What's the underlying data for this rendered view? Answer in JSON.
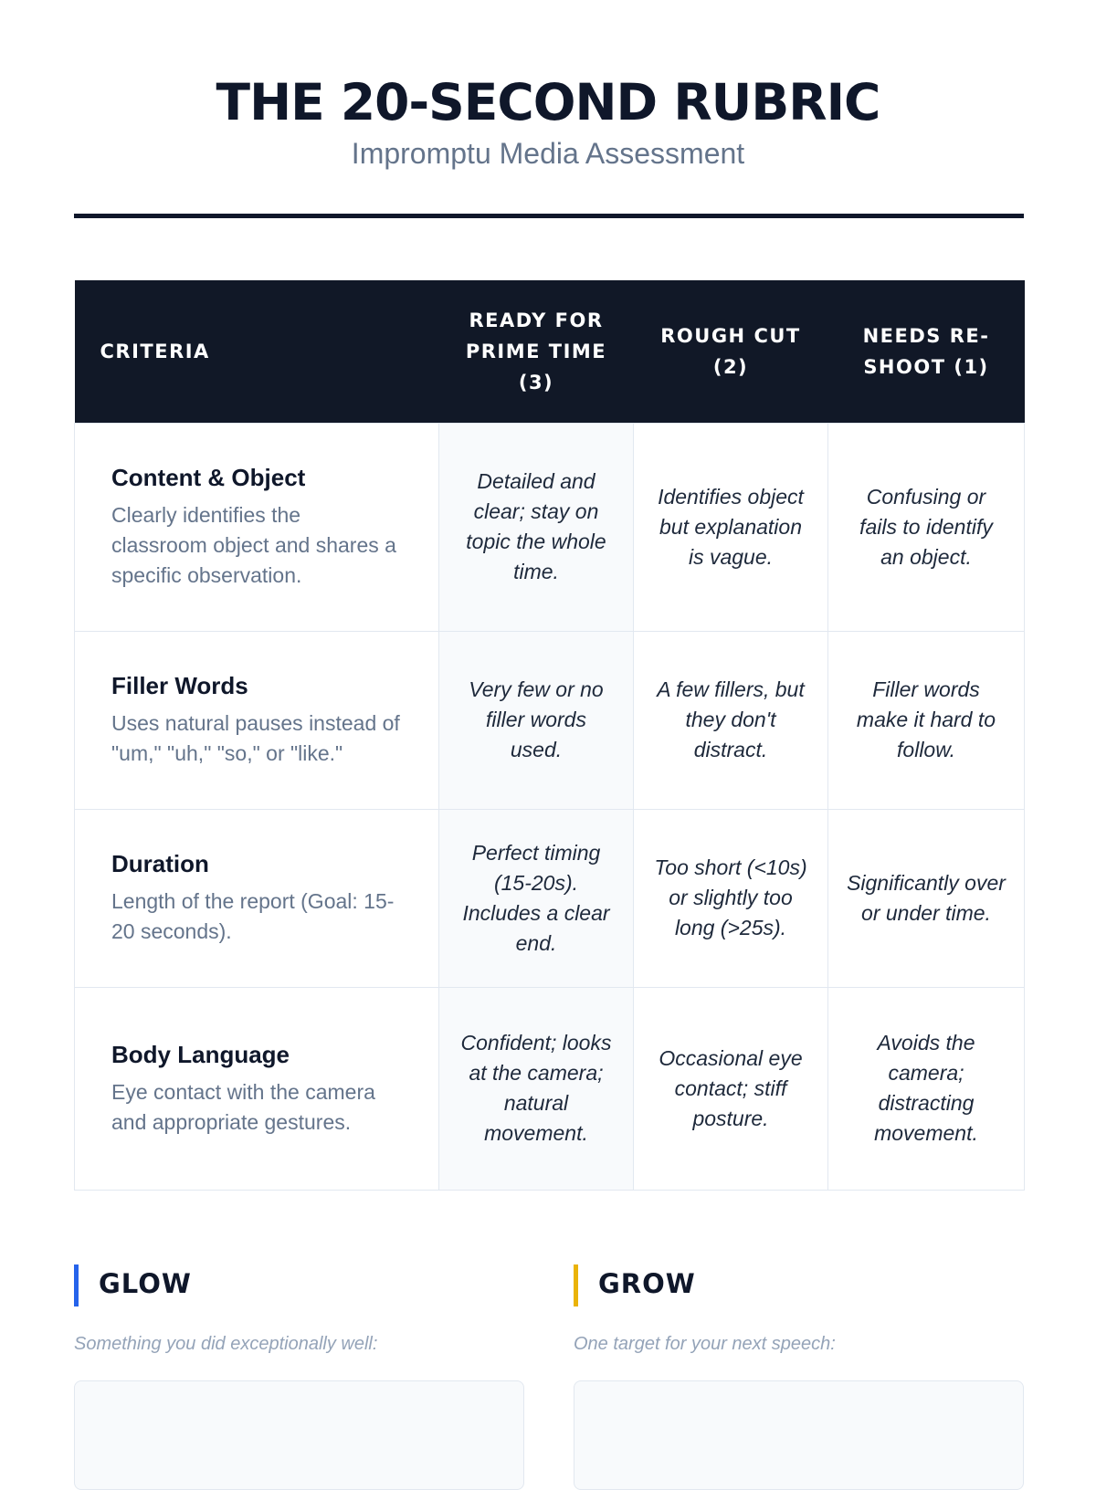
{
  "header": {
    "title": "THE 20-SECOND RUBRIC",
    "subtitle": "Impromptu Media Assessment"
  },
  "table": {
    "columns": [
      "CRITERIA",
      "READY FOR PRIME TIME (3)",
      "ROUGH CUT (2)",
      "NEEDS RE-SHOOT (1)"
    ],
    "rows": [
      {
        "title": "Content & Object",
        "desc": "Clearly identifies the classroom object and shares a specific observation.",
        "c3": "Detailed and clear; stay on topic the whole time.",
        "c2": "Identifies object but explanation is vague.",
        "c1": "Confusing or fails to identify an object."
      },
      {
        "title": "Filler Words",
        "desc": "Uses natural pauses instead of \"um,\" \"uh,\" \"so,\" or \"like.\"",
        "c3": "Very few or no filler words used.",
        "c2": "A few fillers, but they don't distract.",
        "c1": "Filler words make it hard to follow."
      },
      {
        "title": "Duration",
        "desc": "Length of the report (Goal: 15-20 seconds).",
        "c3": "Perfect timing (15-20s). Includes a clear end.",
        "c2": "Too short (<10s) or slightly too long (>25s).",
        "c1": "Significantly over or under time."
      },
      {
        "title": "Body Language",
        "desc": "Eye contact with the camera and appropriate gestures.",
        "c3": "Confident; looks at the camera; natural movement.",
        "c2": "Occasional eye contact; stiff posture.",
        "c1": "Avoids the camera; distracting movement."
      }
    ]
  },
  "glow": {
    "heading": "GLOW",
    "prompt": "Something you did exceptionally well:",
    "accent": "#2563eb"
  },
  "grow": {
    "heading": "GROW",
    "prompt": "One target for your next speech:",
    "accent": "#eab308"
  }
}
